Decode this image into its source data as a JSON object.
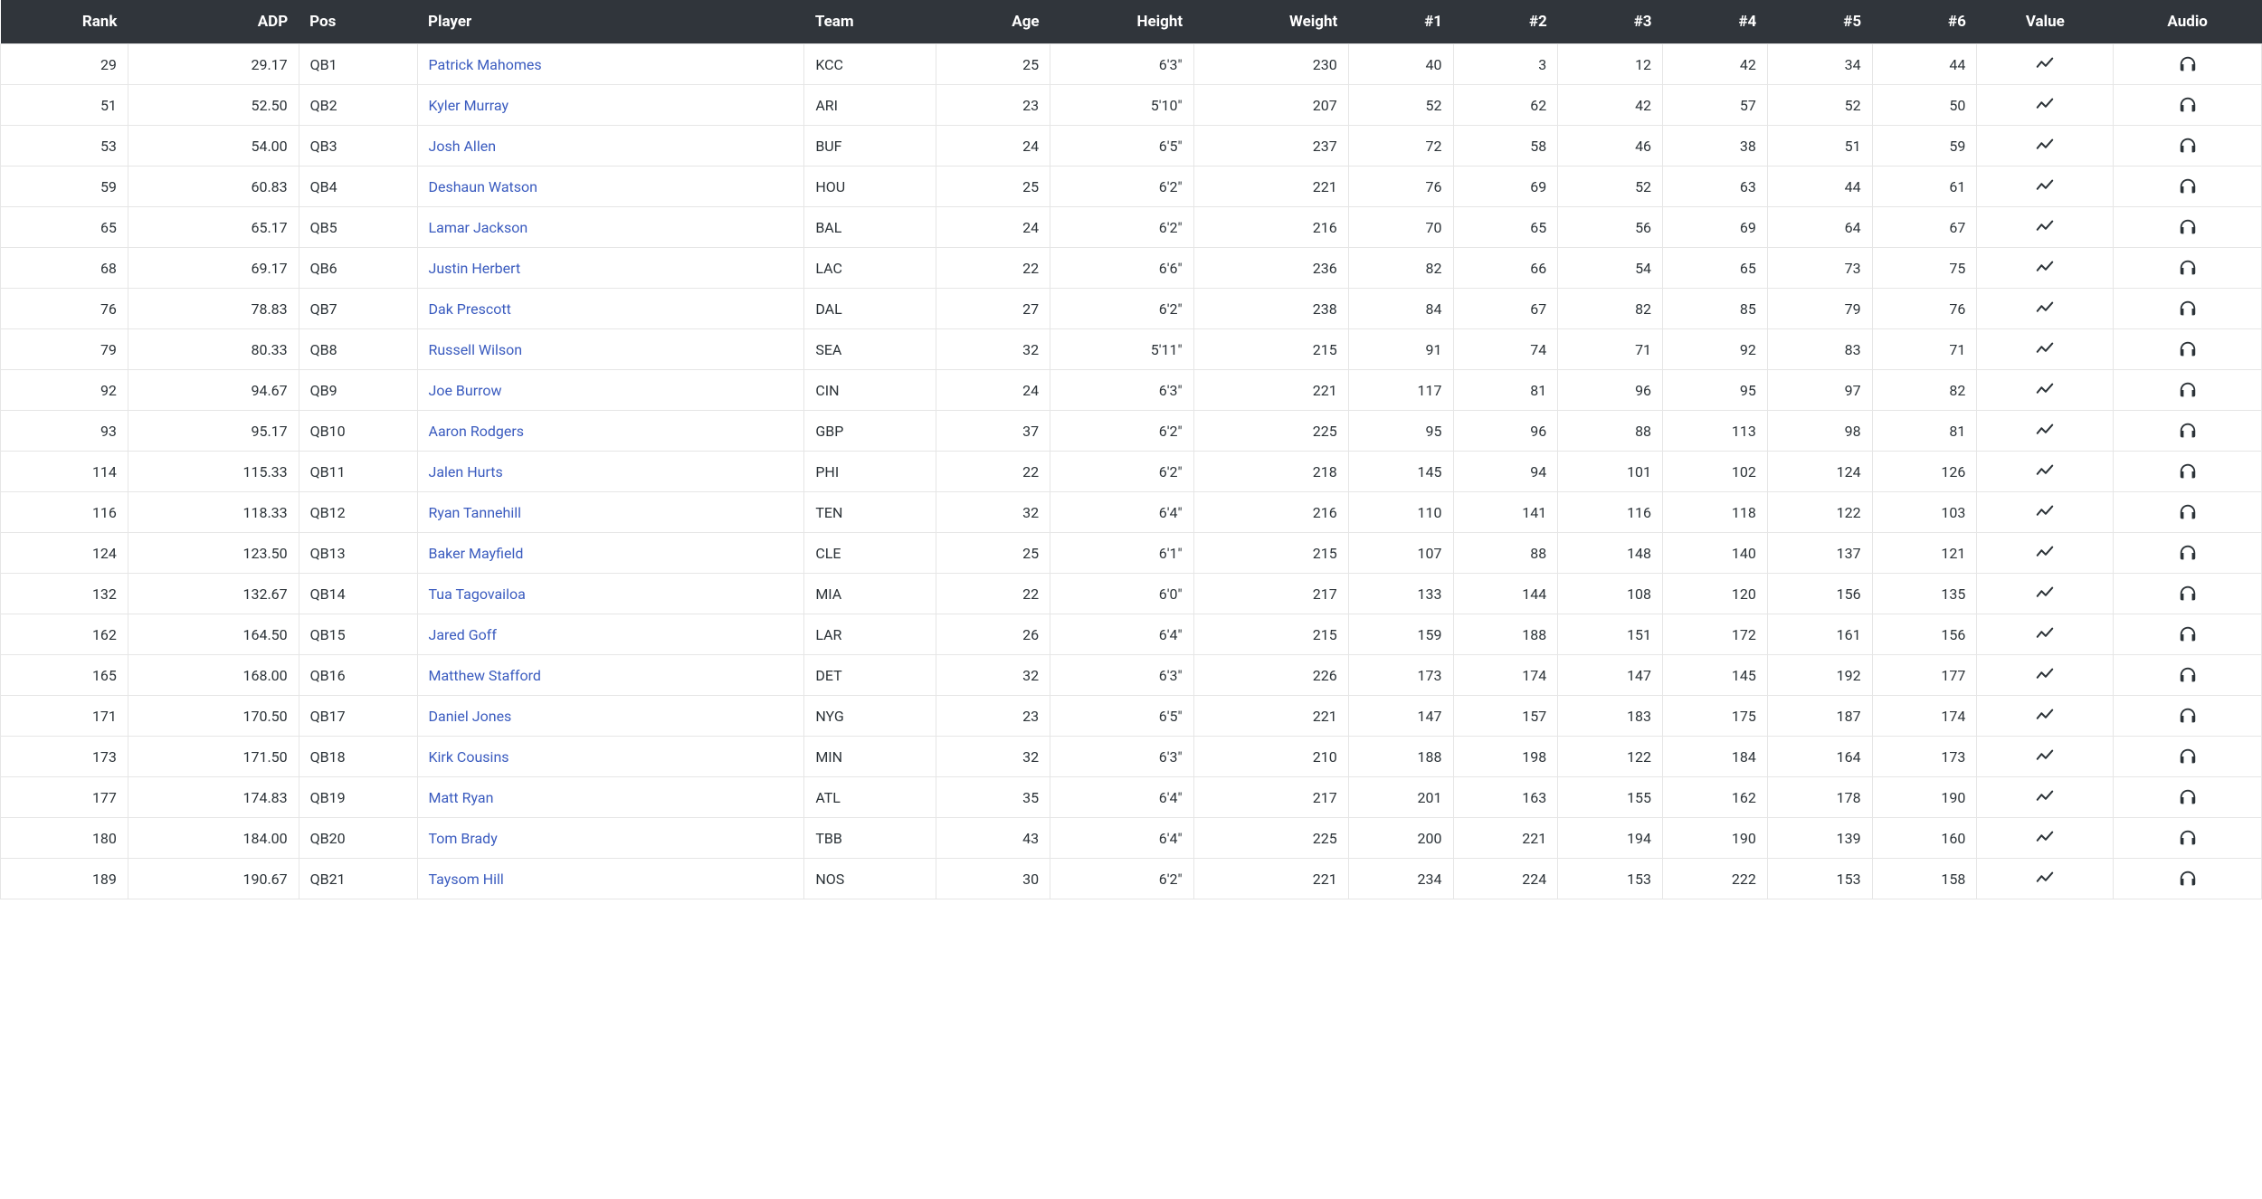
{
  "table": {
    "header_bg": "#30353b",
    "header_fg": "#ffffff",
    "border_color": "#e6e6e6",
    "text_color": "#2c3338",
    "link_color": "#3a5bbf",
    "icon_color": "#2c3338",
    "font_size_header": 17,
    "font_size_body": 16,
    "columns": [
      {
        "key": "rank",
        "label": "Rank",
        "class": "col-rank"
      },
      {
        "key": "adp",
        "label": "ADP",
        "class": "col-adp"
      },
      {
        "key": "pos",
        "label": "Pos",
        "class": "col-pos"
      },
      {
        "key": "player",
        "label": "Player",
        "class": "col-player"
      },
      {
        "key": "team",
        "label": "Team",
        "class": "col-team"
      },
      {
        "key": "age",
        "label": "Age",
        "class": "col-age"
      },
      {
        "key": "height",
        "label": "Height",
        "class": "col-height"
      },
      {
        "key": "weight",
        "label": "Weight",
        "class": "col-weight"
      },
      {
        "key": "n1",
        "label": "#1",
        "class": "col-n"
      },
      {
        "key": "n2",
        "label": "#2",
        "class": "col-n"
      },
      {
        "key": "n3",
        "label": "#3",
        "class": "col-n"
      },
      {
        "key": "n4",
        "label": "#4",
        "class": "col-n"
      },
      {
        "key": "n5",
        "label": "#5",
        "class": "col-n"
      },
      {
        "key": "n6",
        "label": "#6",
        "class": "col-n"
      },
      {
        "key": "value",
        "label": "Value",
        "class": "col-value"
      },
      {
        "key": "audio",
        "label": "Audio",
        "class": "col-audio"
      }
    ],
    "rows": [
      {
        "rank": 29,
        "adp": "29.17",
        "pos": "QB1",
        "player": "Patrick Mahomes",
        "team": "KCC",
        "age": 25,
        "height": "6'3\"",
        "weight": 230,
        "n1": 40,
        "n2": 3,
        "n3": 12,
        "n4": 42,
        "n5": 34,
        "n6": 44
      },
      {
        "rank": 51,
        "adp": "52.50",
        "pos": "QB2",
        "player": "Kyler Murray",
        "team": "ARI",
        "age": 23,
        "height": "5'10\"",
        "weight": 207,
        "n1": 52,
        "n2": 62,
        "n3": 42,
        "n4": 57,
        "n5": 52,
        "n6": 50
      },
      {
        "rank": 53,
        "adp": "54.00",
        "pos": "QB3",
        "player": "Josh Allen",
        "team": "BUF",
        "age": 24,
        "height": "6'5\"",
        "weight": 237,
        "n1": 72,
        "n2": 58,
        "n3": 46,
        "n4": 38,
        "n5": 51,
        "n6": 59
      },
      {
        "rank": 59,
        "adp": "60.83",
        "pos": "QB4",
        "player": "Deshaun Watson",
        "team": "HOU",
        "age": 25,
        "height": "6'2\"",
        "weight": 221,
        "n1": 76,
        "n2": 69,
        "n3": 52,
        "n4": 63,
        "n5": 44,
        "n6": 61
      },
      {
        "rank": 65,
        "adp": "65.17",
        "pos": "QB5",
        "player": "Lamar Jackson",
        "team": "BAL",
        "age": 24,
        "height": "6'2\"",
        "weight": 216,
        "n1": 70,
        "n2": 65,
        "n3": 56,
        "n4": 69,
        "n5": 64,
        "n6": 67
      },
      {
        "rank": 68,
        "adp": "69.17",
        "pos": "QB6",
        "player": "Justin Herbert",
        "team": "LAC",
        "age": 22,
        "height": "6'6\"",
        "weight": 236,
        "n1": 82,
        "n2": 66,
        "n3": 54,
        "n4": 65,
        "n5": 73,
        "n6": 75
      },
      {
        "rank": 76,
        "adp": "78.83",
        "pos": "QB7",
        "player": "Dak Prescott",
        "team": "DAL",
        "age": 27,
        "height": "6'2\"",
        "weight": 238,
        "n1": 84,
        "n2": 67,
        "n3": 82,
        "n4": 85,
        "n5": 79,
        "n6": 76
      },
      {
        "rank": 79,
        "adp": "80.33",
        "pos": "QB8",
        "player": "Russell Wilson",
        "team": "SEA",
        "age": 32,
        "height": "5'11\"",
        "weight": 215,
        "n1": 91,
        "n2": 74,
        "n3": 71,
        "n4": 92,
        "n5": 83,
        "n6": 71
      },
      {
        "rank": 92,
        "adp": "94.67",
        "pos": "QB9",
        "player": "Joe Burrow",
        "team": "CIN",
        "age": 24,
        "height": "6'3\"",
        "weight": 221,
        "n1": 117,
        "n2": 81,
        "n3": 96,
        "n4": 95,
        "n5": 97,
        "n6": 82
      },
      {
        "rank": 93,
        "adp": "95.17",
        "pos": "QB10",
        "player": "Aaron Rodgers",
        "team": "GBP",
        "age": 37,
        "height": "6'2\"",
        "weight": 225,
        "n1": 95,
        "n2": 96,
        "n3": 88,
        "n4": 113,
        "n5": 98,
        "n6": 81
      },
      {
        "rank": 114,
        "adp": "115.33",
        "pos": "QB11",
        "player": "Jalen Hurts",
        "team": "PHI",
        "age": 22,
        "height": "6'2\"",
        "weight": 218,
        "n1": 145,
        "n2": 94,
        "n3": 101,
        "n4": 102,
        "n5": 124,
        "n6": 126
      },
      {
        "rank": 116,
        "adp": "118.33",
        "pos": "QB12",
        "player": "Ryan Tannehill",
        "team": "TEN",
        "age": 32,
        "height": "6'4\"",
        "weight": 216,
        "n1": 110,
        "n2": 141,
        "n3": 116,
        "n4": 118,
        "n5": 122,
        "n6": 103
      },
      {
        "rank": 124,
        "adp": "123.50",
        "pos": "QB13",
        "player": "Baker Mayfield",
        "team": "CLE",
        "age": 25,
        "height": "6'1\"",
        "weight": 215,
        "n1": 107,
        "n2": 88,
        "n3": 148,
        "n4": 140,
        "n5": 137,
        "n6": 121
      },
      {
        "rank": 132,
        "adp": "132.67",
        "pos": "QB14",
        "player": "Tua Tagovailoa",
        "team": "MIA",
        "age": 22,
        "height": "6'0\"",
        "weight": 217,
        "n1": 133,
        "n2": 144,
        "n3": 108,
        "n4": 120,
        "n5": 156,
        "n6": 135
      },
      {
        "rank": 162,
        "adp": "164.50",
        "pos": "QB15",
        "player": "Jared Goff",
        "team": "LAR",
        "age": 26,
        "height": "6'4\"",
        "weight": 215,
        "n1": 159,
        "n2": 188,
        "n3": 151,
        "n4": 172,
        "n5": 161,
        "n6": 156
      },
      {
        "rank": 165,
        "adp": "168.00",
        "pos": "QB16",
        "player": "Matthew Stafford",
        "team": "DET",
        "age": 32,
        "height": "6'3\"",
        "weight": 226,
        "n1": 173,
        "n2": 174,
        "n3": 147,
        "n4": 145,
        "n5": 192,
        "n6": 177
      },
      {
        "rank": 171,
        "adp": "170.50",
        "pos": "QB17",
        "player": "Daniel Jones",
        "team": "NYG",
        "age": 23,
        "height": "6'5\"",
        "weight": 221,
        "n1": 147,
        "n2": 157,
        "n3": 183,
        "n4": 175,
        "n5": 187,
        "n6": 174
      },
      {
        "rank": 173,
        "adp": "171.50",
        "pos": "QB18",
        "player": "Kirk Cousins",
        "team": "MIN",
        "age": 32,
        "height": "6'3\"",
        "weight": 210,
        "n1": 188,
        "n2": 198,
        "n3": 122,
        "n4": 184,
        "n5": 164,
        "n6": 173
      },
      {
        "rank": 177,
        "adp": "174.83",
        "pos": "QB19",
        "player": "Matt Ryan",
        "team": "ATL",
        "age": 35,
        "height": "6'4\"",
        "weight": 217,
        "n1": 201,
        "n2": 163,
        "n3": 155,
        "n4": 162,
        "n5": 178,
        "n6": 190
      },
      {
        "rank": 180,
        "adp": "184.00",
        "pos": "QB20",
        "player": "Tom Brady",
        "team": "TBB",
        "age": 43,
        "height": "6'4\"",
        "weight": 225,
        "n1": 200,
        "n2": 221,
        "n3": 194,
        "n4": 190,
        "n5": 139,
        "n6": 160
      },
      {
        "rank": 189,
        "adp": "190.67",
        "pos": "QB21",
        "player": "Taysom Hill",
        "team": "NOS",
        "age": 30,
        "height": "6'2\"",
        "weight": 221,
        "n1": 234,
        "n2": 224,
        "n3": 153,
        "n4": 222,
        "n5": 153,
        "n6": 158
      }
    ]
  }
}
